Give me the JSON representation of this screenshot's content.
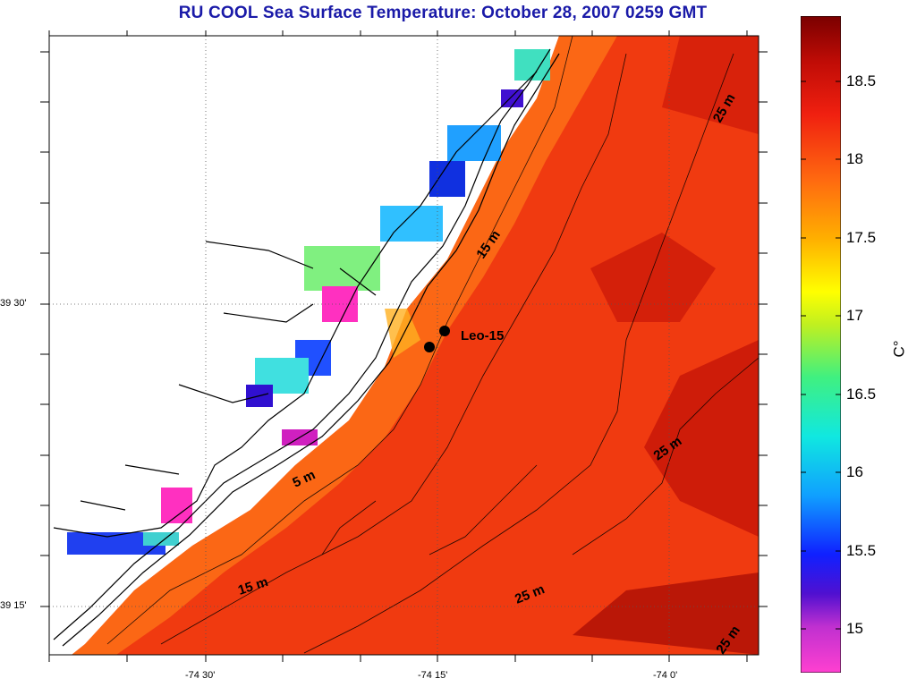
{
  "title": "RU COOL  Sea Surface Temperature:  October 28, 2007 0259 GMT",
  "map": {
    "lon_tick_labels": [
      "-74 30'",
      "-74 15'",
      "-74 0'"
    ],
    "lat_tick_labels": [
      "39 30'",
      "39 15'"
    ],
    "station_label": "Leo-15",
    "contour_labels": [
      "25 m",
      "15 m",
      "25 m",
      "5 m",
      "15 m",
      "25 m",
      "25 m"
    ],
    "colors": {
      "ocean_warm": "#e8260c",
      "ocean_mid": "#ff5a10",
      "land": "#ffffff",
      "coast_line": "#000000",
      "grid_line": "#666666"
    }
  },
  "colorbar": {
    "unit": "C°",
    "tick_labels": [
      "18.5",
      "18",
      "17.5",
      "17",
      "16.5",
      "16",
      "15.5",
      "15"
    ],
    "range": [
      14.7,
      18.9
    ]
  }
}
